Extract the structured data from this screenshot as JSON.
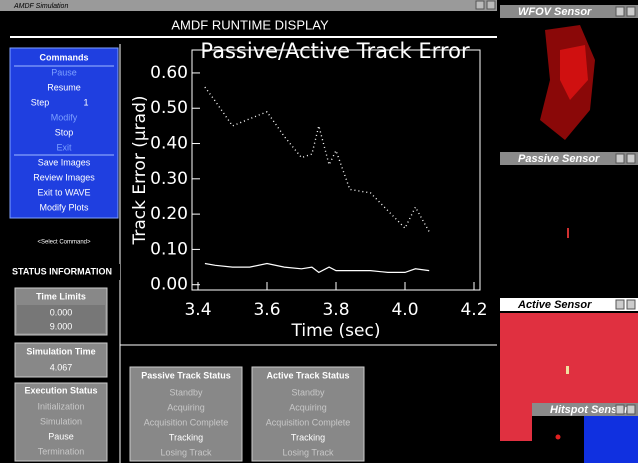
{
  "window_title": "AMDF Simulation",
  "header": "AMDF RUNTIME DISPLAY",
  "commands": {
    "title": "Commands",
    "buttons": [
      "Pause",
      "Resume",
      "Step",
      "Modify",
      "Stop",
      "Exit",
      "Save Images",
      "Review Images",
      "Exit to WAVE",
      "Modify Plots"
    ],
    "step_value": "1",
    "prompt": "<Select Command>"
  },
  "status": {
    "title": "STATUS INFORMATION",
    "time_limits": {
      "title": "Time Limits",
      "values": [
        "0.000",
        "9.000"
      ]
    },
    "simulation_time": {
      "title": "Simulation Time",
      "value": "4.067"
    },
    "execution_status": {
      "title": "Execution Status",
      "items": [
        "Initialization",
        "Simulation",
        "Pause",
        "Termination"
      ]
    }
  },
  "passive_track_status": {
    "title": "Passive Track Status",
    "items": [
      "Standby",
      "Acquiring",
      "Acquisition Complete",
      "Tracking",
      "Losing Track"
    ]
  },
  "active_track_status": {
    "title": "Active Track Status",
    "items": [
      "Standby",
      "Acquiring",
      "Acquisition Complete",
      "Tracking",
      "Losing Track"
    ]
  },
  "sensors": [
    "WFOV Sensor",
    "Passive Sensor",
    "Active Sensor",
    "Hitspot Sensor"
  ],
  "chart_data": {
    "type": "line",
    "title": "Passive/Active Track Error",
    "x_label": "Time (sec)",
    "y_label": "Track Error (μrad)",
    "x": [
      3.42,
      3.45,
      3.5,
      3.55,
      3.6,
      3.65,
      3.7,
      3.73,
      3.75,
      3.78,
      3.8,
      3.84,
      3.9,
      3.95,
      4.0,
      4.03,
      4.07
    ],
    "series": [
      {
        "color": "#ffffff",
        "dotted": true,
        "values": [
          0.56,
          0.52,
          0.45,
          0.47,
          0.49,
          0.42,
          0.36,
          0.37,
          0.45,
          0.34,
          0.38,
          0.27,
          0.26,
          0.21,
          0.16,
          0.22,
          0.15
        ]
      },
      {
        "color": "#ffffff",
        "dotted": false,
        "values": [
          0.06,
          0.055,
          0.05,
          0.05,
          0.06,
          0.05,
          0.045,
          0.05,
          0.035,
          0.05,
          0.04,
          0.04,
          0.04,
          0.035,
          0.035,
          0.045,
          0.04
        ]
      }
    ],
    "xlim": [
      3.4,
      4.2
    ],
    "xticks": [
      3.4,
      3.6,
      3.8,
      {
        "value": 4,
        "label": "4.0"
      },
      4.2
    ],
    "ylim": [
      -0.015,
      0.665
    ],
    "yticks": [
      {
        "value": 0,
        "label": "0.00"
      },
      {
        "value": 0.1,
        "label": "0.10"
      },
      {
        "value": 0.2,
        "label": "0.20"
      },
      {
        "value": 0.3,
        "label": "0.30"
      },
      {
        "value": 0.4,
        "label": "0.40"
      },
      {
        "value": 0.5,
        "label": "0.50"
      },
      {
        "value": 0.6,
        "label": "0.60"
      }
    ]
  }
}
